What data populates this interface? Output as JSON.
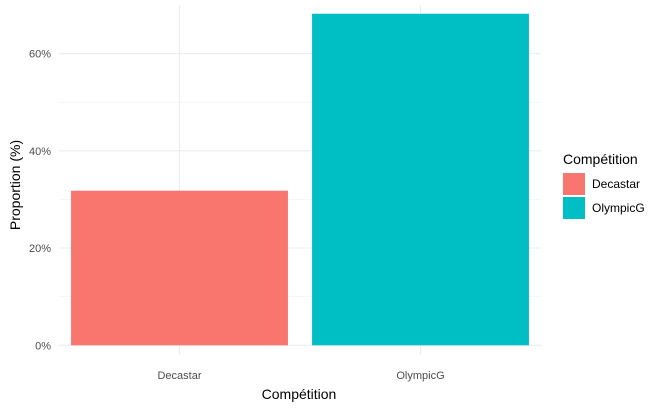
{
  "chart_data": {
    "type": "bar",
    "categories": [
      "Decastar",
      "OlympicG"
    ],
    "values": [
      31.8,
      68.2
    ],
    "colors": [
      "#F8766D",
      "#00BFC4"
    ],
    "xlabel": "Compétition",
    "ylabel": "Proportion (%)",
    "ylim": [
      -2,
      70
    ],
    "yticks": [
      0,
      20,
      40,
      60
    ],
    "ytick_labels": [
      "0%",
      "20%",
      "40%",
      "60%"
    ],
    "grid": true,
    "theme": "minimal",
    "legend": {
      "title": "Compétition",
      "placement": "right",
      "entries": [
        {
          "label": "Decastar",
          "color": "#F8766D"
        },
        {
          "label": "OlympicG",
          "color": "#00BFC4"
        }
      ]
    }
  }
}
